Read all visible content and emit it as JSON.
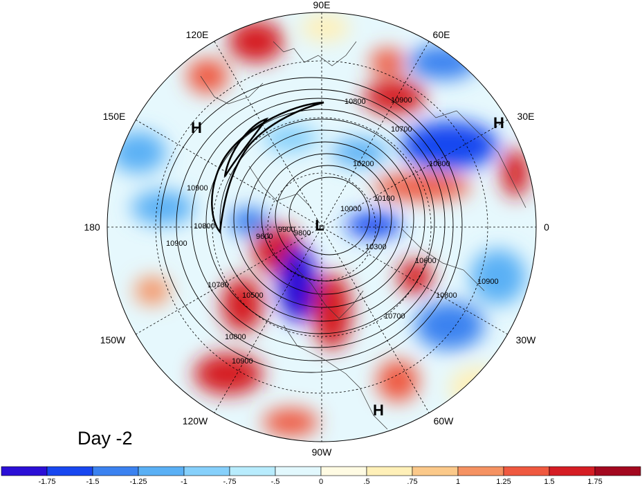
{
  "panel": {
    "day_label": "Day -2"
  },
  "longitude_labels": [
    "90E",
    "60E",
    "30E",
    "0",
    "30W",
    "60W",
    "90W",
    "120W",
    "150W",
    "180",
    "150E",
    "120E"
  ],
  "pressure_centers": [
    "L",
    "H",
    "H",
    "H"
  ],
  "contour_labels": [
    "10800",
    "10900",
    "10700",
    "10600",
    "10500",
    "10300",
    "10200",
    "10100",
    "10000",
    "9900",
    "9800",
    "9600"
  ],
  "colorbar": {
    "ticks": [
      "-1.75",
      "-1.5",
      "-1.25",
      "-1",
      "-.75",
      "-.5",
      "0",
      ".5",
      ".75",
      "1",
      "1.25",
      "1.5",
      "1.75"
    ],
    "colors": [
      "#2b0fd6",
      "#1847f0",
      "#3b82f0",
      "#5ab0f5",
      "#86d0fb",
      "#b8ecfd",
      "#e2f8fd",
      "#fffbe3",
      "#fff0b8",
      "#fbc98a",
      "#f59262",
      "#ef5940",
      "#d51d24",
      "#a3081f"
    ]
  }
}
